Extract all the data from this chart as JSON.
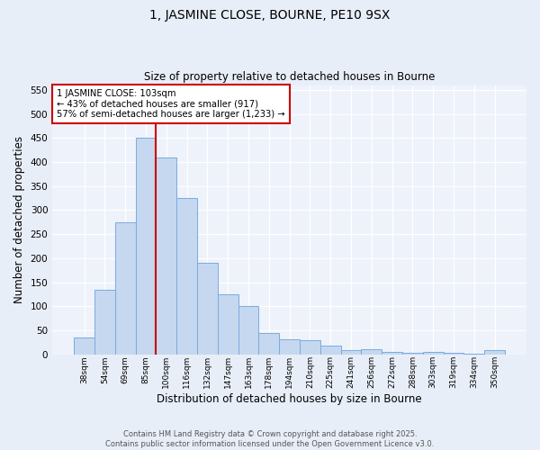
{
  "title1": "1, JASMINE CLOSE, BOURNE, PE10 9SX",
  "title2": "Size of property relative to detached houses in Bourne",
  "xlabel": "Distribution of detached houses by size in Bourne",
  "ylabel": "Number of detached properties",
  "categories": [
    "38sqm",
    "54sqm",
    "69sqm",
    "85sqm",
    "100sqm",
    "116sqm",
    "132sqm",
    "147sqm",
    "163sqm",
    "178sqm",
    "194sqm",
    "210sqm",
    "225sqm",
    "241sqm",
    "256sqm",
    "272sqm",
    "288sqm",
    "303sqm",
    "319sqm",
    "334sqm",
    "350sqm"
  ],
  "values": [
    35,
    135,
    275,
    450,
    410,
    325,
    190,
    125,
    100,
    45,
    32,
    30,
    18,
    8,
    10,
    5,
    4,
    5,
    4,
    2,
    8
  ],
  "bar_color": "#c5d8ef",
  "bar_edge_color": "#7aabe0",
  "vline_x_index": 4,
  "vline_color": "#cc0000",
  "annotation_text": "1 JASMINE CLOSE: 103sqm\n← 43% of detached houses are smaller (917)\n57% of semi-detached houses are larger (1,233) →",
  "annotation_box_color": "#ffffff",
  "annotation_box_edge_color": "#cc0000",
  "ylim": [
    0,
    560
  ],
  "yticks": [
    0,
    50,
    100,
    150,
    200,
    250,
    300,
    350,
    400,
    450,
    500,
    550
  ],
  "footer1": "Contains HM Land Registry data © Crown copyright and database right 2025.",
  "footer2": "Contains public sector information licensed under the Open Government Licence v3.0.",
  "bg_color": "#e8eef8",
  "plot_bg_color": "#eef2fa",
  "grid_color": "#ffffff"
}
